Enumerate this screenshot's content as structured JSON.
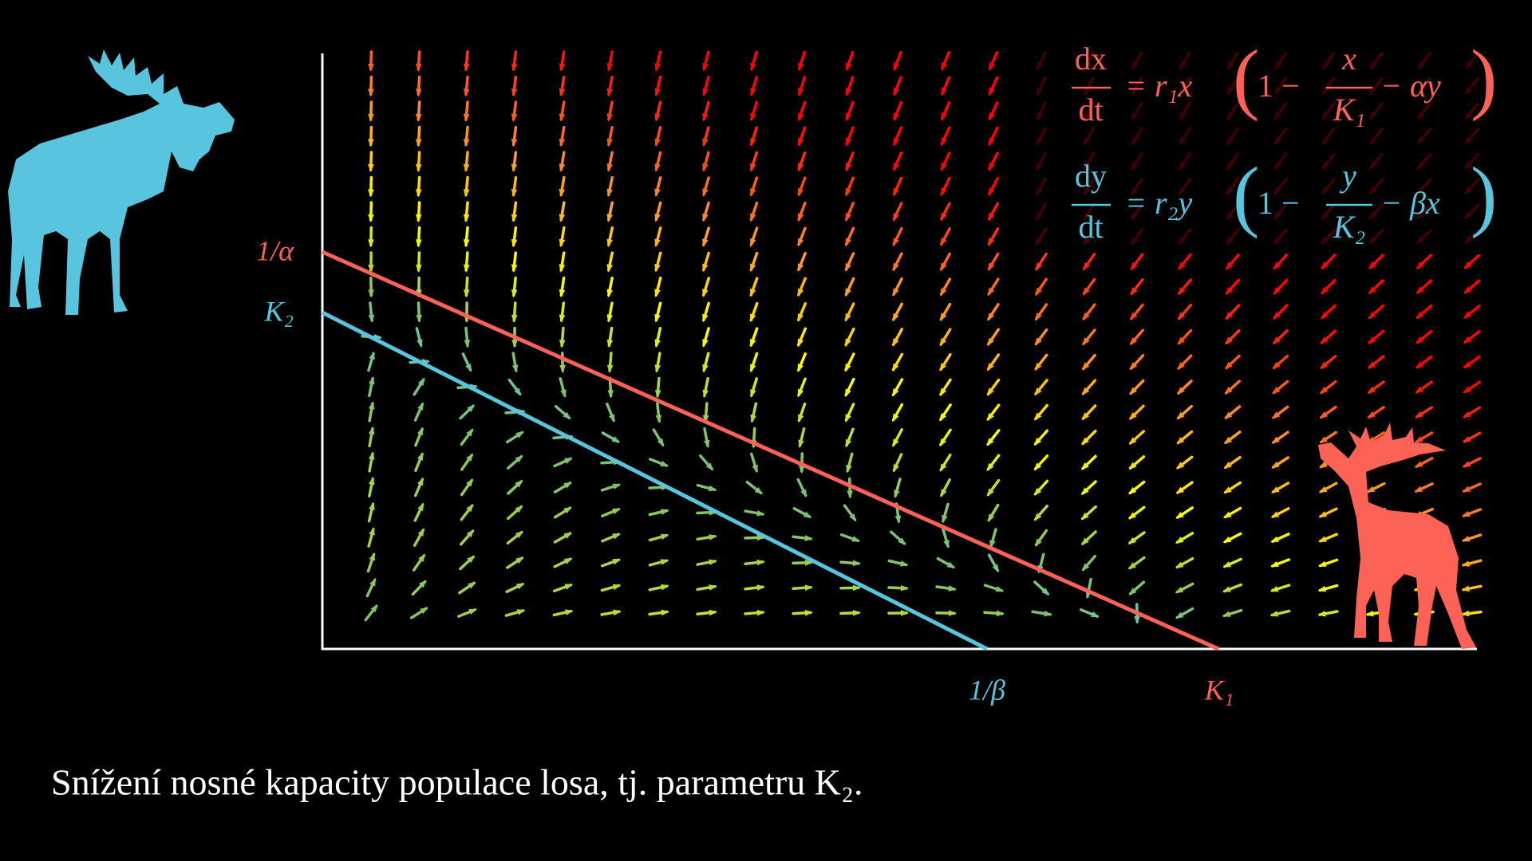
{
  "axis_labels": {
    "y_top": "1/α",
    "y_k2": "K₂",
    "x_beta": "1/β",
    "x_k1": "K₁"
  },
  "equations": [
    {
      "num": "dx",
      "den": "dt",
      "rhs": "= r₁x",
      "open": "(",
      "one": "1 −",
      "frac_num": "x",
      "frac_den": "K₁",
      "tail": "− αy",
      "close": ")"
    },
    {
      "num": "dy",
      "den": "dt",
      "rhs": "= r₂y",
      "open": "(",
      "one": "1 −",
      "frac_num": "y",
      "frac_den": "K₂",
      "tail": "− βx",
      "close": ")"
    }
  ],
  "caption": "Snížení nosné kapacity populace losa, tj. parametru K₂."
}
